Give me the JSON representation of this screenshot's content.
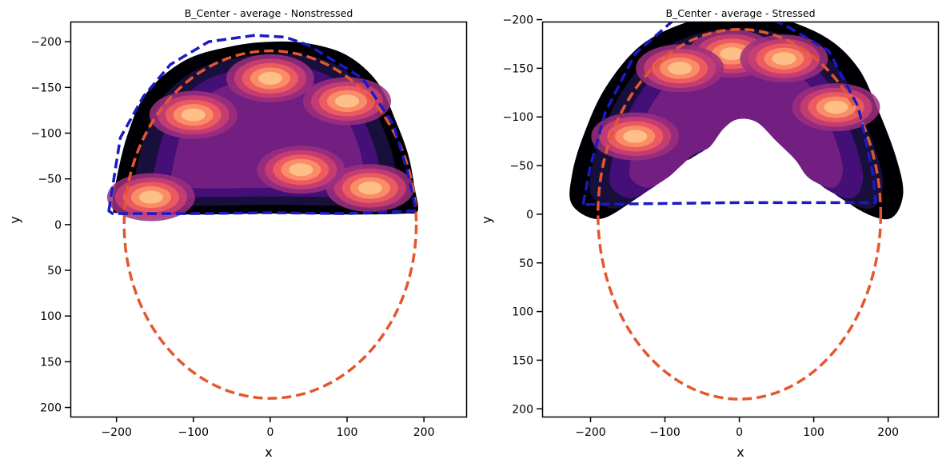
{
  "chart_data": [
    {
      "type": "contour",
      "title": "B_Center - average - Nonstressed",
      "xlabel": "x",
      "ylabel": "y",
      "xlim": [
        -260,
        255
      ],
      "ylim": [
        210,
        -222
      ],
      "y_inverted": true,
      "xticks": [
        -200,
        -100,
        0,
        100,
        200
      ],
      "yticks": [
        -200,
        -150,
        -100,
        -50,
        0,
        50,
        100,
        150,
        200
      ],
      "grid": false,
      "colormap": "magma",
      "ellipse": {
        "cx": 0,
        "cy": 0,
        "rx": 190,
        "ry": 190,
        "color": "#e4572e",
        "style": "dashed"
      },
      "hull": {
        "color": "#1a1ac8",
        "style": "dashed",
        "points": [
          [
            -210,
            -15
          ],
          [
            -195,
            -95
          ],
          [
            -165,
            -140
          ],
          [
            -130,
            -175
          ],
          [
            -80,
            -200
          ],
          [
            -20,
            -207
          ],
          [
            20,
            -205
          ],
          [
            50,
            -196
          ],
          [
            120,
            -160
          ],
          [
            160,
            -110
          ],
          [
            178,
            -60
          ],
          [
            190,
            -15
          ],
          [
            100,
            -12
          ],
          [
            0,
            -13
          ],
          [
            -100,
            -12
          ],
          [
            -205,
            -12
          ]
        ]
      },
      "density_region": {
        "outline": [
          [
            -205,
            -18
          ],
          [
            -200,
            -50
          ],
          [
            -185,
            -100
          ],
          [
            -160,
            -145
          ],
          [
            -110,
            -180
          ],
          [
            -50,
            -195
          ],
          [
            0,
            -200
          ],
          [
            50,
            -198
          ],
          [
            100,
            -185
          ],
          [
            140,
            -155
          ],
          [
            165,
            -110
          ],
          [
            180,
            -75
          ],
          [
            188,
            -40
          ],
          [
            192,
            -15
          ],
          [
            175,
            -12
          ],
          [
            100,
            -11
          ],
          [
            0,
            -12
          ],
          [
            -100,
            -11
          ],
          [
            -190,
            -12
          ]
        ],
        "peaks": [
          [
            -100,
            -120
          ],
          [
            0,
            -160
          ],
          [
            100,
            -135
          ],
          [
            -155,
            -30
          ],
          [
            130,
            -40
          ],
          [
            40,
            -60
          ]
        ]
      }
    },
    {
      "type": "contour",
      "title": "B_Center - average - Stressed",
      "xlabel": "x",
      "ylabel": "y",
      "xlim": [
        -265,
        267
      ],
      "ylim": [
        208,
        -198
      ],
      "y_inverted": true,
      "xticks": [
        -200,
        -100,
        0,
        100,
        200
      ],
      "yticks": [
        -200,
        -150,
        -100,
        -50,
        0,
        50,
        100,
        150,
        200
      ],
      "grid": false,
      "colormap": "magma",
      "ellipse": {
        "cx": 0,
        "cy": 0,
        "rx": 190,
        "ry": 190,
        "color": "#e4572e",
        "style": "dashed"
      },
      "hull": {
        "color": "#1a1ac8",
        "style": "dashed",
        "points": [
          [
            -210,
            -10
          ],
          [
            -200,
            -50
          ],
          [
            -180,
            -105
          ],
          [
            -140,
            -165
          ],
          [
            -80,
            -205
          ],
          [
            -20,
            -213
          ],
          [
            10,
            -210
          ],
          [
            60,
            -195
          ],
          [
            120,
            -168
          ],
          [
            160,
            -110
          ],
          [
            180,
            -40
          ],
          [
            183,
            -12
          ],
          [
            0,
            -12
          ],
          [
            -210,
            -10
          ]
        ]
      },
      "density_region": {
        "outline": [
          [
            -225,
            -40
          ],
          [
            -210,
            -80
          ],
          [
            -180,
            -130
          ],
          [
            -130,
            -175
          ],
          [
            -60,
            -200
          ],
          [
            0,
            -205
          ],
          [
            60,
            -200
          ],
          [
            120,
            -180
          ],
          [
            160,
            -150
          ],
          [
            185,
            -110
          ],
          [
            210,
            -60
          ],
          [
            220,
            -20
          ],
          [
            200,
            5
          ],
          [
            150,
            -10
          ],
          [
            120,
            -40
          ],
          [
            80,
            -70
          ],
          [
            40,
            -100
          ],
          [
            0,
            -105
          ],
          [
            -30,
            -90
          ],
          [
            -60,
            -60
          ],
          [
            -90,
            -50
          ],
          [
            -120,
            -30
          ],
          [
            -150,
            -10
          ],
          [
            -190,
            5
          ],
          [
            -225,
            -10
          ]
        ],
        "peaks": [
          [
            -10,
            -165
          ],
          [
            60,
            -160
          ],
          [
            -80,
            -150
          ],
          [
            130,
            -110
          ],
          [
            -140,
            -80
          ]
        ]
      }
    }
  ]
}
